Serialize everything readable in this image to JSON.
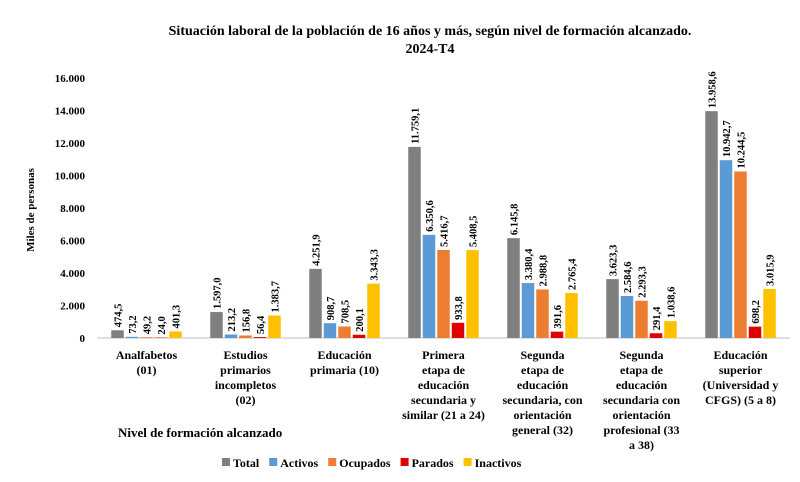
{
  "chart_data": {
    "type": "bar",
    "title": "Situación laboral de la población de 16 años y más, según nivel de formación alcanzado.",
    "subtitle": "2024-T4",
    "ylabel": "Miles de personas",
    "xlabel": "Nivel de formación alcanzado",
    "ylim": [
      0,
      16000
    ],
    "yticks": [
      0,
      2000,
      4000,
      6000,
      8000,
      10000,
      12000,
      14000,
      16000
    ],
    "ytick_labels": [
      "0",
      "2.000",
      "4.000",
      "6.000",
      "8.000",
      "10.000",
      "12.000",
      "14.000",
      "16.000"
    ],
    "grid": false,
    "legend_position": "bottom",
    "categories": [
      [
        "Analfabetos",
        "(01)"
      ],
      [
        "Estudios",
        "primarios",
        "incompletos",
        "(02)"
      ],
      [
        "Educación",
        "primaria (10)"
      ],
      [
        "Primera",
        "etapa de",
        "educación",
        "secundaria y",
        "similar (21 a 24)"
      ],
      [
        "Segunda",
        "etapa de",
        "educación",
        "secundaria, con",
        "orientación",
        "general (32)"
      ],
      [
        "Segunda",
        "etapa de",
        "educación",
        "secundaria con",
        "orientación",
        "profesional (33",
        "a 38)"
      ],
      [
        "Educación",
        "superior",
        "(Universidad y",
        "CFGS) (5 a 8)"
      ]
    ],
    "series": [
      {
        "name": "Total",
        "color": "#7f7f7f",
        "values": [
          474.5,
          1597.0,
          4251.9,
          11759.1,
          6145.8,
          3623.3,
          13958.6
        ],
        "labels": [
          "474,5",
          "1.597,0",
          "4.251,9",
          "11.759,1",
          "6.145,8",
          "3.623,3",
          "13.958,6"
        ]
      },
      {
        "name": "Activos",
        "color": "#5b9bd5",
        "values": [
          73.2,
          213.2,
          908.7,
          6350.6,
          3380.4,
          2584.6,
          10942.7
        ],
        "labels": [
          "73,2",
          "213,2",
          "908,7",
          "6.350,6",
          "3.380,4",
          "2.584,6",
          "10.942,7"
        ]
      },
      {
        "name": "Ocupados",
        "color": "#ed7d31",
        "values": [
          49.2,
          156.8,
          708.5,
          5416.7,
          2988.8,
          2293.3,
          10244.5
        ],
        "labels": [
          "49,2",
          "156,8",
          "708,5",
          "5.416,7",
          "2.988,8",
          "2.293,3",
          "10.244,5"
        ]
      },
      {
        "name": "Parados",
        "color": "#e00000",
        "values": [
          24.0,
          56.4,
          200.1,
          933.8,
          391.6,
          291.4,
          698.2
        ],
        "labels": [
          "24,0",
          "56,4",
          "200,1",
          "933,8",
          "391,6",
          "291,4",
          "698,2"
        ]
      },
      {
        "name": "Inactivos",
        "color": "#ffc000",
        "values": [
          401.3,
          1383.7,
          3343.3,
          5408.5,
          2765.4,
          1038.6,
          3015.9
        ],
        "labels": [
          "401,3",
          "1.383,7",
          "3.343,3",
          "5.408,5",
          "2.765,4",
          "1.038,6",
          "3.015,9"
        ]
      }
    ]
  }
}
